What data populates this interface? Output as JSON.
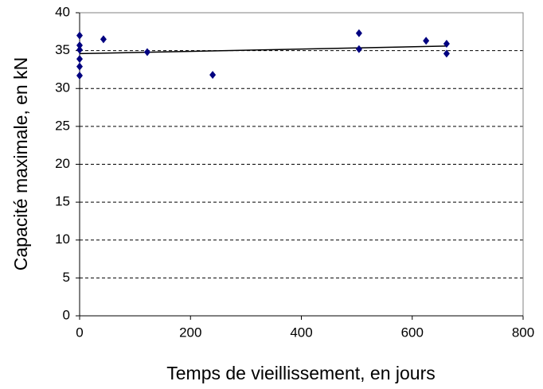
{
  "chart_data": {
    "type": "scatter",
    "x_label": "Temps de vieillissement, en jours",
    "y_label": "Capacité maximale, en kN",
    "points": {
      "color": "#000080",
      "x": [
        0,
        0,
        0,
        0,
        0,
        0,
        43,
        122,
        240,
        504,
        504,
        625,
        662,
        662
      ],
      "values": [
        37.0,
        35.7,
        35.1,
        33.9,
        32.9,
        31.7,
        36.5,
        34.8,
        31.8,
        37.3,
        35.2,
        36.3,
        35.9,
        34.6
      ]
    },
    "trendline": {
      "color": "#000000",
      "x": [
        0,
        662
      ],
      "values": [
        34.6,
        35.6
      ]
    },
    "xlim": [
      0,
      800
    ],
    "xticks": [
      0,
      200,
      400,
      600,
      800
    ],
    "ylim": [
      0,
      40
    ],
    "yticks": [
      0,
      5,
      10,
      15,
      20,
      25,
      30,
      35,
      40
    ],
    "grid": true
  }
}
